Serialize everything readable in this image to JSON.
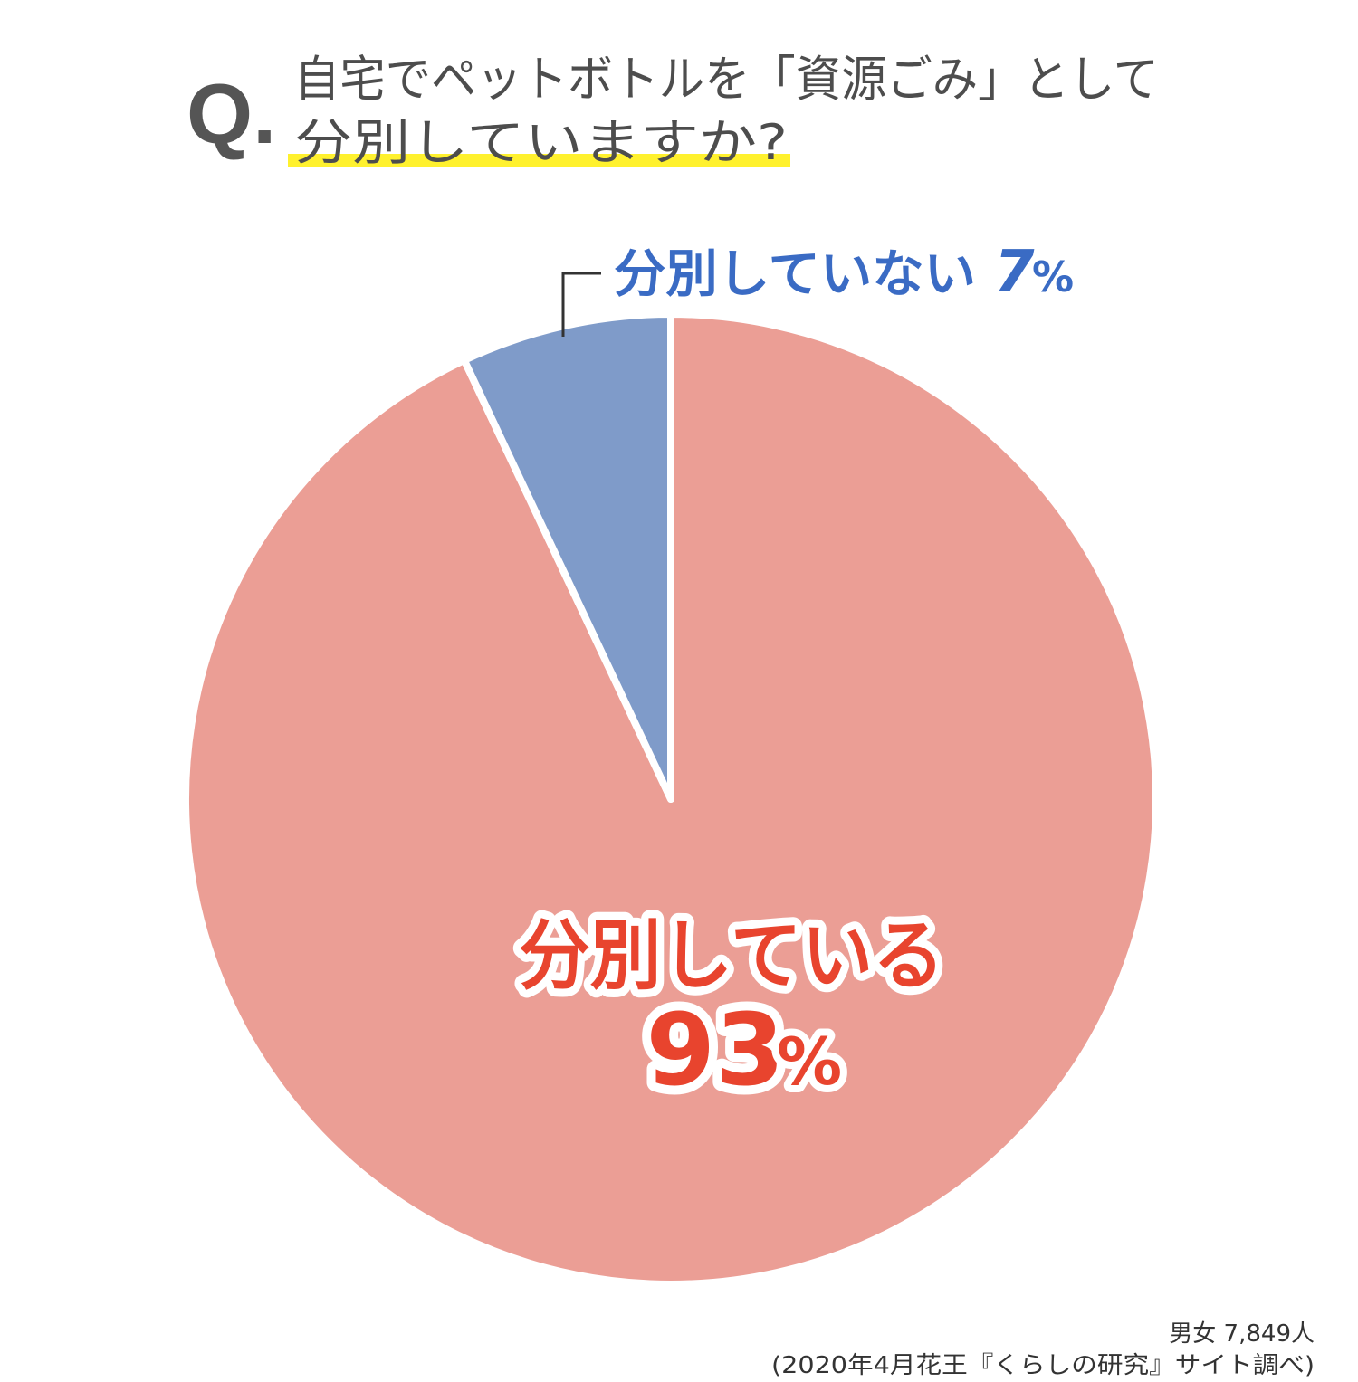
{
  "question": {
    "mark": "Q.",
    "line1": "自宅でペットボトルを「資源ごみ」として",
    "line2": "分別していますか?"
  },
  "chart_data": {
    "type": "pie",
    "categories": [
      "分別している",
      "分別していない"
    ],
    "values": [
      93,
      7
    ],
    "unit": "%",
    "colors": [
      "#EB9E95",
      "#7F9BC9"
    ],
    "label_colors": [
      "#E8442E",
      "#3A6BC4"
    ],
    "start_angle": "12 o'clock",
    "direction": "clockwise"
  },
  "labels": {
    "yes_text": "分別している",
    "yes_value": "93",
    "yes_unit": "%",
    "no_text": "分別していない",
    "no_value": "7",
    "no_unit": "%"
  },
  "footer": {
    "sample": "男女 7,849人",
    "source": "(2020年4月花王『くらしの研究』サイト調べ)"
  },
  "colors": {
    "highlight": "#FFF12E",
    "question_text": "#4d4d4d"
  }
}
